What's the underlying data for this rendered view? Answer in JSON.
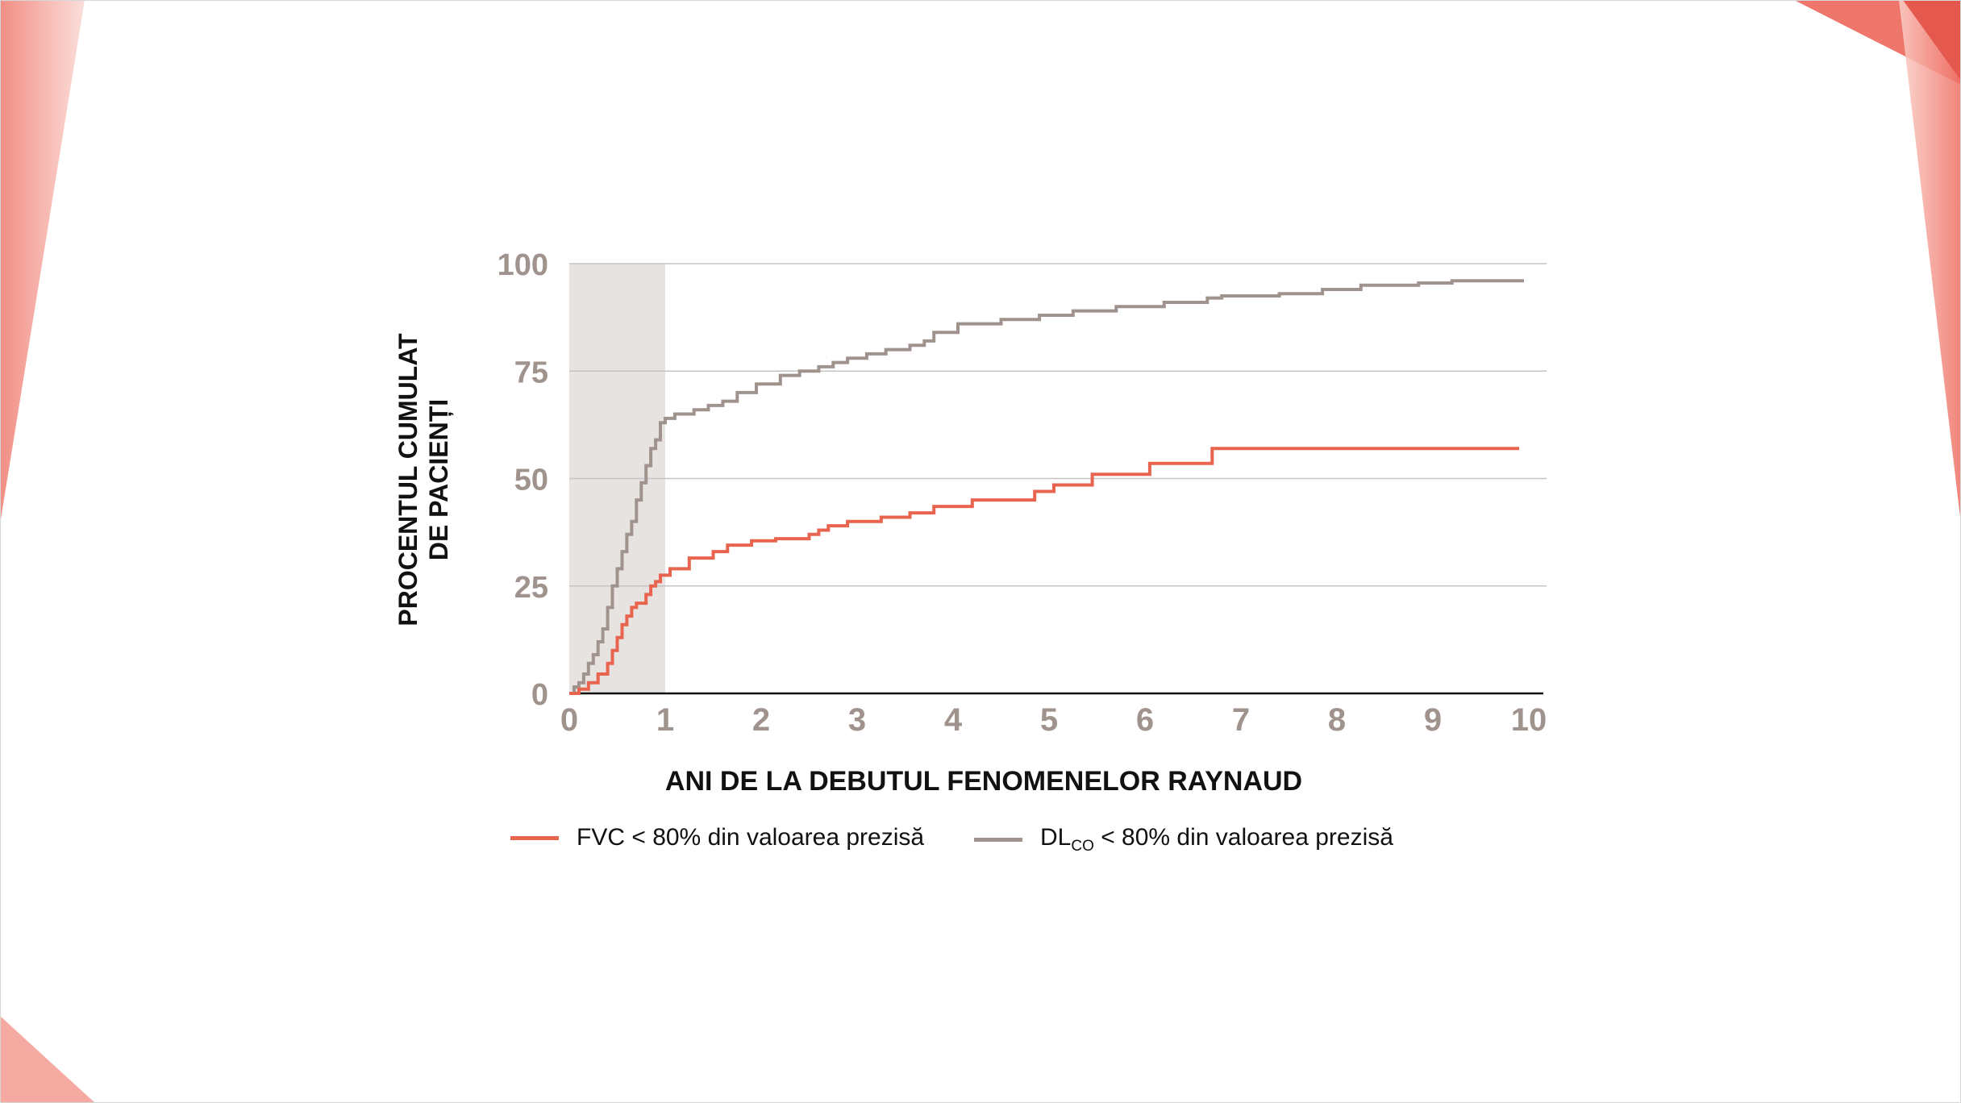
{
  "colors": {
    "fvc": "#e8644e",
    "dlco": "#a0938d",
    "tick": "#a0938d",
    "shade": "#e7e3e1",
    "grid": "#c4c4c4",
    "axis": "#111111"
  },
  "legend": {
    "fvc_label": "FVC < 80% din valoarea prezisă",
    "dlco_prefix": "DL",
    "dlco_sub": "CO",
    "dlco_suffix": " < 80% din valoarea prezisă"
  },
  "chart_data": {
    "type": "line",
    "step": true,
    "title": "",
    "xlabel": "ANI DE LA DEBUTUL FENOMENELOR RAYNAUD",
    "ylabel_lines": [
      "PROCENTUL CUMULAT",
      "DE PACIENȚI"
    ],
    "xlim": [
      0,
      10
    ],
    "ylim": [
      0,
      100
    ],
    "xticks": [
      0,
      1,
      2,
      3,
      4,
      5,
      6,
      7,
      8,
      9,
      10
    ],
    "yticks": [
      0,
      25,
      50,
      75,
      100
    ],
    "grid": "horizontal",
    "shaded_region": [
      0,
      1
    ],
    "series": [
      {
        "name": "DLCO < 80% din valoarea prezisă",
        "key": "dlco",
        "x": [
          0,
          0.05,
          0.1,
          0.15,
          0.2,
          0.25,
          0.3,
          0.35,
          0.4,
          0.45,
          0.5,
          0.55,
          0.6,
          0.65,
          0.7,
          0.75,
          0.8,
          0.85,
          0.9,
          0.95,
          1.0,
          1.1,
          1.3,
          1.45,
          1.6,
          1.75,
          1.95,
          2.2,
          2.4,
          2.6,
          2.75,
          2.9,
          3.1,
          3.3,
          3.55,
          3.7,
          3.8,
          4.05,
          4.5,
          4.9,
          5.25,
          5.7,
          6.2,
          6.65,
          6.8,
          7.4,
          7.85,
          8.25,
          8.85,
          9.2,
          9.95
        ],
        "y": [
          0,
          1.5,
          2.5,
          4.5,
          7,
          9,
          12,
          15,
          20,
          25,
          29,
          33,
          37,
          40,
          45,
          49,
          53,
          57,
          59,
          63,
          64,
          65,
          66,
          67,
          68,
          70,
          72,
          74,
          75,
          76,
          77,
          78,
          79,
          80,
          81,
          82,
          84,
          86,
          87,
          88,
          89,
          90,
          91,
          92,
          92.5,
          93,
          94,
          95,
          95.5,
          96,
          96
        ]
      },
      {
        "name": "FVC < 80% din valoarea prezisă",
        "key": "fvc",
        "x": [
          0,
          0.1,
          0.2,
          0.3,
          0.4,
          0.45,
          0.5,
          0.55,
          0.6,
          0.65,
          0.7,
          0.8,
          0.85,
          0.9,
          0.95,
          1.05,
          1.25,
          1.5,
          1.65,
          1.9,
          2.15,
          2.5,
          2.6,
          2.7,
          2.9,
          3.25,
          3.55,
          3.8,
          4.2,
          4.85,
          5.05,
          5.45,
          6.05,
          6.7,
          9.9
        ],
        "y": [
          0,
          1,
          2.5,
          4.5,
          7,
          10,
          13,
          16,
          18,
          20,
          21,
          23,
          25,
          26,
          27.5,
          29,
          31.5,
          33,
          34.5,
          35.5,
          36,
          37,
          38,
          39,
          40,
          41,
          42,
          43.5,
          45,
          47,
          48.5,
          51,
          53.5,
          57,
          57
        ]
      }
    ]
  }
}
